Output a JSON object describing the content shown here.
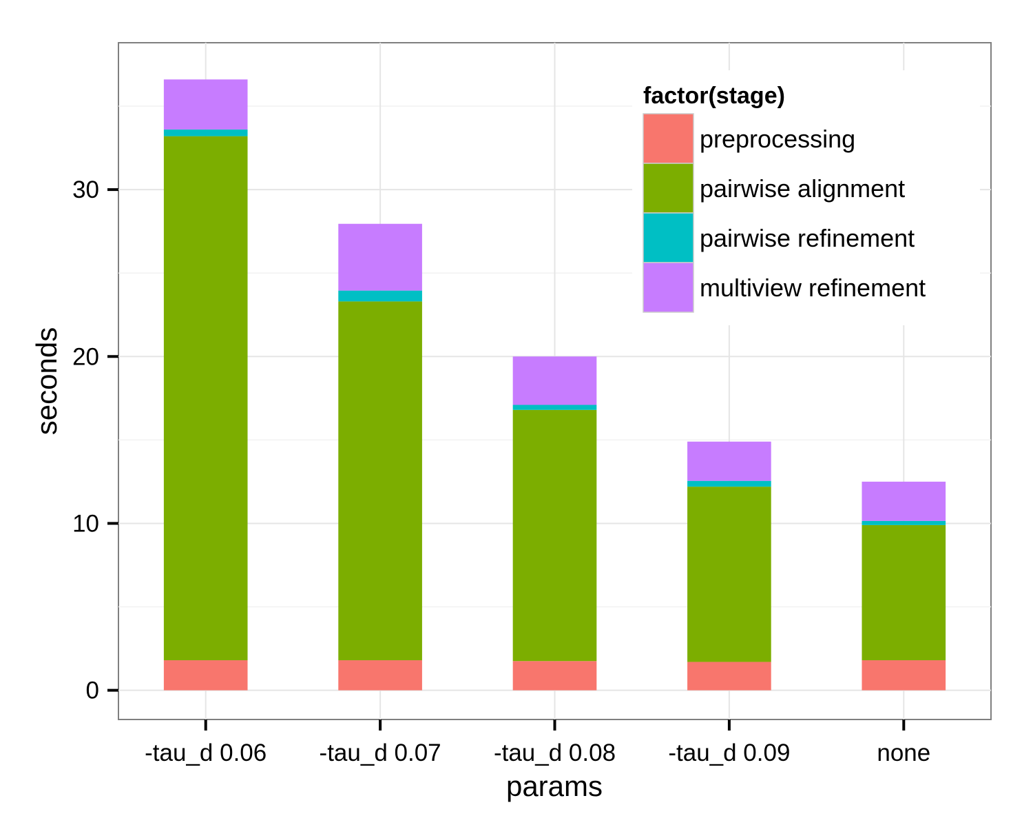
{
  "chart_data": {
    "type": "bar",
    "stacked": true,
    "xlabel": "params",
    "ylabel": "seconds",
    "categories": [
      "-tau_d 0.06",
      "-tau_d 0.07",
      "-tau_d 0.08",
      "-tau_d 0.09",
      "none"
    ],
    "yticks": [
      0,
      10,
      20,
      30
    ],
    "ylim": [
      -1.75,
      38.8
    ],
    "grid": true,
    "legend": {
      "title": "factor(stage)",
      "position": "top-right, inside plot"
    },
    "series": [
      {
        "name": "preprocessing",
        "color": "#F8766D",
        "values": [
          1.8,
          1.8,
          1.75,
          1.7,
          1.8
        ]
      },
      {
        "name": "pairwise alignment",
        "color": "#7CAE00",
        "values": [
          31.4,
          21.5,
          15.05,
          10.5,
          8.1
        ]
      },
      {
        "name": "pairwise refinement",
        "color": "#00BFC4",
        "values": [
          0.4,
          0.65,
          0.3,
          0.35,
          0.25
        ]
      },
      {
        "name": "multiview refinement",
        "color": "#C77CFF",
        "values": [
          3.0,
          4.0,
          2.9,
          2.35,
          2.35
        ]
      }
    ]
  }
}
